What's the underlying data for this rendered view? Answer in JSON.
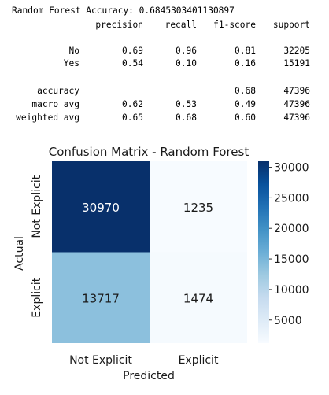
{
  "report": {
    "title_line": "Random Forest Accuracy: 0.6845303401130897",
    "headers": [
      "precision",
      "recall",
      "f1-score",
      "support"
    ],
    "rows": [
      {
        "label": "No",
        "precision": "0.69",
        "recall": "0.96",
        "f1": "0.81",
        "support": "32205"
      },
      {
        "label": "Yes",
        "precision": "0.54",
        "recall": "0.10",
        "f1": "0.16",
        "support": "15191"
      },
      {
        "label": "accuracy",
        "precision": "",
        "recall": "",
        "f1": "0.68",
        "support": "47396"
      },
      {
        "label": "macro avg",
        "precision": "0.62",
        "recall": "0.53",
        "f1": "0.49",
        "support": "47396"
      },
      {
        "label": "weighted avg",
        "precision": "0.65",
        "recall": "0.68",
        "f1": "0.60",
        "support": "47396"
      }
    ]
  },
  "chart_data": {
    "type": "heatmap",
    "title": "Confusion Matrix - Random Forest",
    "xlabel": "Predicted",
    "ylabel": "Actual",
    "x_categories": [
      "Not Explicit",
      "Explicit"
    ],
    "y_categories": [
      "Not Explicit",
      "Explicit"
    ],
    "values": [
      [
        30970,
        1235
      ],
      [
        13717,
        1474
      ]
    ],
    "colormap": "Blues",
    "colorbar_range": [
      1235,
      30970
    ],
    "colorbar_ticks": [
      5000,
      10000,
      15000,
      20000,
      25000,
      30000
    ],
    "colorbar_tick_labels": [
      "5000",
      "10000",
      "15000",
      "20000",
      "25000",
      "30000"
    ]
  }
}
